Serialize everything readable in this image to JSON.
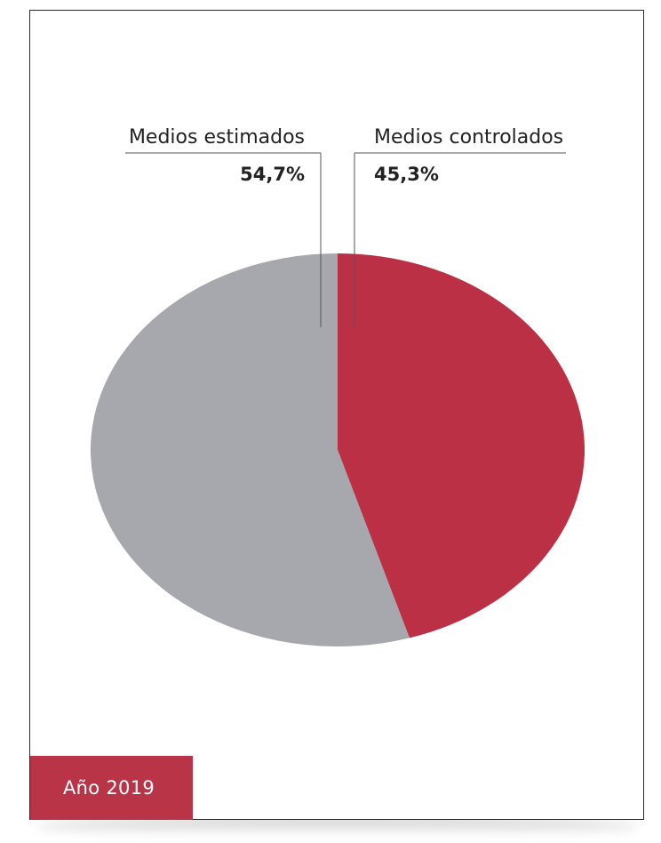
{
  "chart_data": {
    "type": "pie",
    "slices": [
      {
        "label": "Medios controlados",
        "value": 45.3,
        "display": "45,3%",
        "color": "#bb3045"
      },
      {
        "label": "Medios estimados",
        "value": 54.7,
        "display": "54,7%",
        "color": "#a7a8ad"
      }
    ],
    "period_label": "Año 2019"
  },
  "colors": {
    "accent": "#b93447",
    "grey": "#a7a8ad",
    "text": "#222222"
  }
}
